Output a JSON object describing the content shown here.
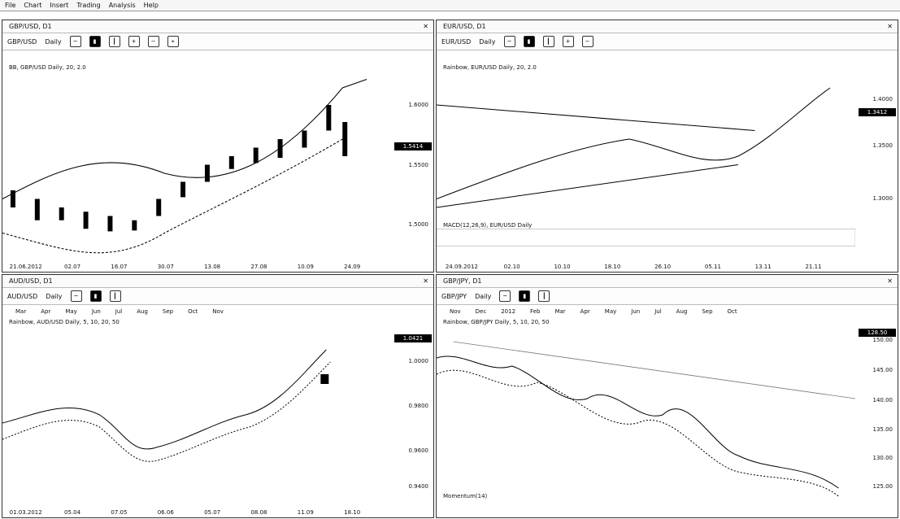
{
  "menu": [
    "File",
    "Chart",
    "Insert",
    "Trading",
    "Analysis",
    "Help"
  ],
  "toolbar_icons": [
    "symbol",
    "period",
    "chart-type",
    "line",
    "candle",
    "bar",
    "zoom-in",
    "zoom-out",
    "crosshair",
    "text",
    "draw",
    "settings"
  ],
  "panes": [
    {
      "title": "GBP/USD, D1",
      "toolbar": {
        "symbol": "GBP/USD",
        "period": "Daily"
      },
      "legend": "BB, GBP/USD Daily, 20, 2.0",
      "yticks": [
        "1.6000",
        "1.5500",
        "1.5000"
      ],
      "current_price": "1.5414",
      "xticks": [
        "21.06.2012",
        "02.07",
        "16.07",
        "30.07",
        "13.08",
        "27.08",
        "10.09",
        "24.09"
      ]
    },
    {
      "title": "EUR/USD, D1",
      "toolbar": {
        "symbol": "EUR/USD",
        "period": "Daily"
      },
      "legend": "Rainbow, EUR/USD Daily, 20, 2.0",
      "yticks": [
        "1.4000",
        "1.3500",
        "1.3000"
      ],
      "current_price": "1.3412",
      "xticks": [
        "24.09.2012",
        "02.10",
        "10.10",
        "18.10",
        "26.10",
        "05.11",
        "13.11",
        "21.11"
      ],
      "sub_legend": "MACD(12,26,9), EUR/USD Daily"
    },
    {
      "title": "AUD/USD, D1",
      "toolbar": {
        "symbol": "AUD/USD",
        "period": "Daily"
      },
      "legend": "Rainbow, AUD/USD Daily, 5, 10, 20, 50",
      "yticks": [
        "1.0000",
        "0.9800",
        "0.9600",
        "0.9400"
      ],
      "current_price": "1.0421",
      "months": [
        "Mar",
        "Apr",
        "May",
        "Jun",
        "Jul",
        "Aug",
        "Sep",
        "Oct",
        "Nov"
      ],
      "xticks": [
        "01.03.2012",
        "05.04",
        "07.05",
        "06.06",
        "05.07",
        "08.08",
        "11.09",
        "18.10"
      ]
    },
    {
      "title": "GBP/JPY, D1",
      "toolbar": {
        "symbol": "GBP/JPY",
        "period": "Daily"
      },
      "legend": "Rainbow, GBP/JPY Daily, 5, 10, 20, 50",
      "yticks": [
        "150.00",
        "145.00",
        "140.00",
        "135.00",
        "130.00",
        "125.00"
      ],
      "current_price": "128.50",
      "months": [
        "Nov",
        "Dec",
        "2012",
        "Feb",
        "Mar",
        "Apr",
        "May",
        "Jun",
        "Jul",
        "Aug",
        "Sep",
        "Oct"
      ],
      "sub_legend": "Momentum(14)"
    }
  ]
}
